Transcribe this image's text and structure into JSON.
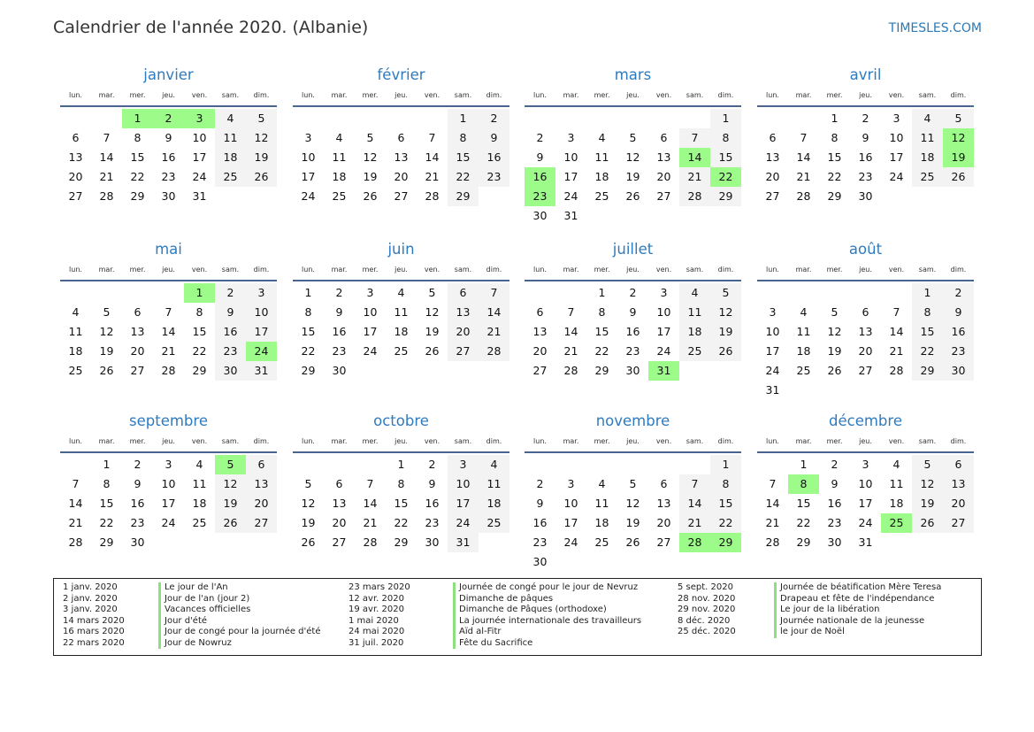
{
  "header": {
    "title": "Calendrier de l'année 2020. (Albanie)",
    "brand": "TIMESLES.COM"
  },
  "year": 2020,
  "weekdays": [
    "lun.",
    "mar.",
    "mer.",
    "jeu.",
    "ven.",
    "sam.",
    "dim."
  ],
  "months": [
    "janvier",
    "février",
    "mars",
    "avril",
    "mai",
    "juin",
    "juillet",
    "août",
    "septembre",
    "octobre",
    "novembre",
    "décembre"
  ],
  "colors": {
    "holiday": "#9dfb8a",
    "weekend": "#f3f3f3",
    "accent": "#2f7bbf",
    "rule": "#4a6491"
  },
  "holiday_days": [
    [
      1,
      1
    ],
    [
      1,
      2
    ],
    [
      1,
      3
    ],
    [
      3,
      14
    ],
    [
      3,
      16
    ],
    [
      3,
      22
    ],
    [
      3,
      23
    ],
    [
      4,
      12
    ],
    [
      4,
      19
    ],
    [
      5,
      1
    ],
    [
      5,
      24
    ],
    [
      7,
      31
    ],
    [
      9,
      5
    ],
    [
      11,
      28
    ],
    [
      11,
      29
    ],
    [
      12,
      8
    ],
    [
      12,
      25
    ]
  ],
  "legend": [
    [
      {
        "date": "1 janv. 2020",
        "name": "Le jour de l'An"
      },
      {
        "date": "2 janv. 2020",
        "name": "Jour de l'an (jour 2)"
      },
      {
        "date": "3 janv. 2020",
        "name": "Vacances officielles"
      },
      {
        "date": "14 mars 2020",
        "name": "Jour d'été"
      },
      {
        "date": "16 mars 2020",
        "name": "Jour de congé pour la journée d'été"
      },
      {
        "date": "22 mars 2020",
        "name": "Jour de Nowruz"
      }
    ],
    [
      {
        "date": "23 mars 2020",
        "name": "Journée de congé pour le jour de Nevruz"
      },
      {
        "date": "12 avr. 2020",
        "name": "Dimanche de pâques"
      },
      {
        "date": "19 avr. 2020",
        "name": "Dimanche de Pâques (orthodoxe)"
      },
      {
        "date": "1 mai 2020",
        "name": "La journée internationale des travailleurs"
      },
      {
        "date": "24 mai 2020",
        "name": "Aïd al-Fitr"
      },
      {
        "date": "31 juil. 2020",
        "name": "Fête du Sacrifice"
      }
    ],
    [
      {
        "date": "5 sept. 2020",
        "name": "Journée de béatification Mère Teresa"
      },
      {
        "date": "28 nov. 2020",
        "name": "Drapeau et fête de l'indépendance"
      },
      {
        "date": "29 nov. 2020",
        "name": "Le jour de la libération"
      },
      {
        "date": "8 déc. 2020",
        "name": "Journée nationale de la jeunesse"
      },
      {
        "date": "25 déc. 2020",
        "name": "le jour de Noël"
      }
    ]
  ]
}
